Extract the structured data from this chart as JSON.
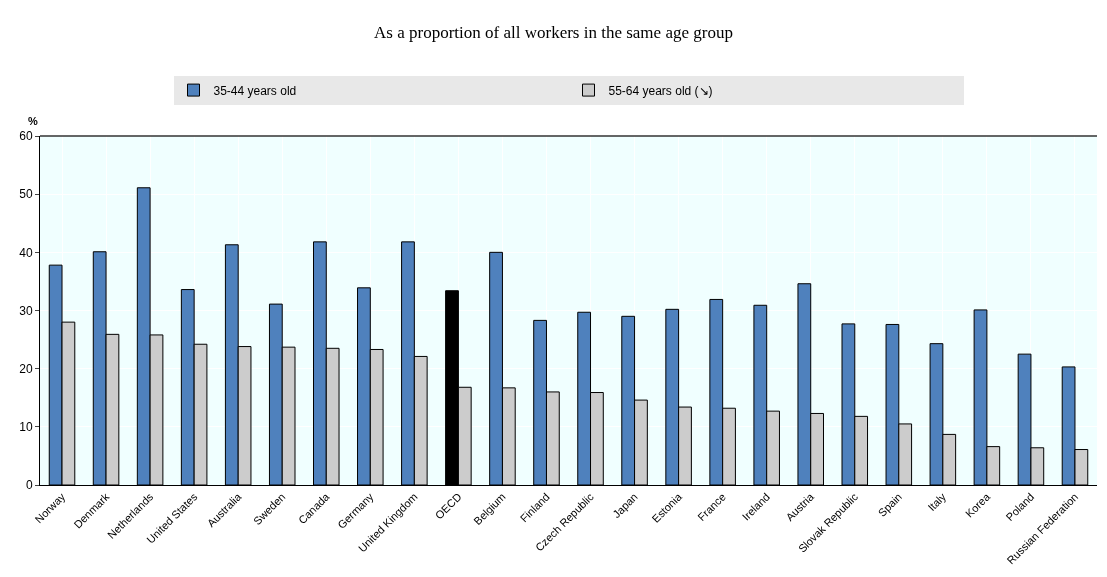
{
  "chart_data": {
    "type": "bar",
    "title": "As a proportion of all workers in the same age group",
    "ylabel": "%",
    "categories": [
      "Norway",
      "Denmark",
      "Netherlands",
      "United States",
      "Australia",
      "Sweden",
      "Canada",
      "Germany",
      "United Kingdom",
      "OECD",
      "Belgium",
      "Finland",
      "Czech Republic",
      "Japan",
      "Estonia",
      "France",
      "Ireland",
      "Austria",
      "Slovak Republic",
      "Spain",
      "Italy",
      "Korea",
      "Poland",
      "Russian Federation"
    ],
    "series": [
      {
        "name": "35-44 years old",
        "colors": [
          "#4f81bd",
          "#4f81bd",
          "#4f81bd",
          "#4f81bd",
          "#4f81bd",
          "#4f81bd",
          "#4f81bd",
          "#4f81bd",
          "#4f81bd",
          "#000000",
          "#4f81bd",
          "#4f81bd",
          "#4f81bd",
          "#4f81bd",
          "#4f81bd",
          "#4f81bd",
          "#4f81bd",
          "#4f81bd",
          "#4f81bd",
          "#4f81bd",
          "#4f81bd",
          "#4f81bd",
          "#4f81bd",
          "#4f81bd"
        ],
        "values": [
          37.8,
          40.1,
          51.1,
          33.6,
          41.3,
          31.1,
          41.8,
          33.9,
          41.8,
          33.4,
          40.0,
          28.3,
          29.7,
          29.0,
          30.2,
          31.9,
          30.9,
          34.6,
          27.7,
          27.6,
          24.3,
          30.1,
          22.5,
          20.3
        ]
      },
      {
        "name": "55-64 years old (↘)",
        "color": "#cccccc",
        "values": [
          28.0,
          25.9,
          25.8,
          24.2,
          23.8,
          23.7,
          23.5,
          23.3,
          22.1,
          16.8,
          16.7,
          16.0,
          15.9,
          14.6,
          13.4,
          13.2,
          12.7,
          12.3,
          11.8,
          10.5,
          8.7,
          6.6,
          6.4,
          6.1
        ]
      }
    ],
    "ylim": [
      0,
      60
    ],
    "yticks": [
      0,
      10,
      20,
      30,
      40,
      50,
      60
    ],
    "grid": true,
    "legend": "top"
  }
}
